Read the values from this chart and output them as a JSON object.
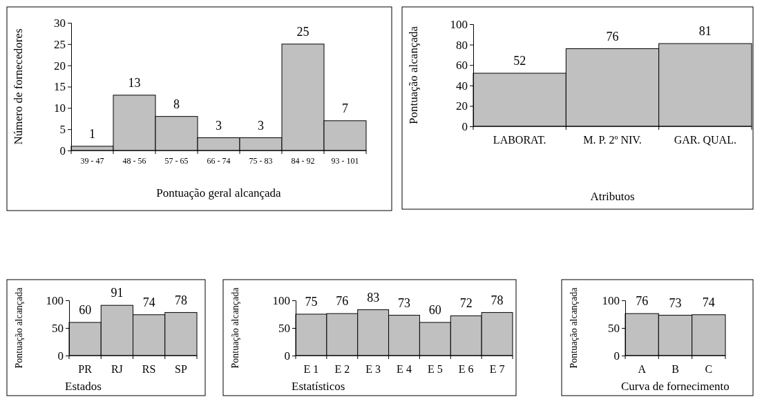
{
  "chart_data": [
    {
      "type": "bar",
      "categories": [
        "39 - 47",
        "48 - 56",
        "57 - 65",
        "66 - 74",
        "75 - 83",
        "84 - 92",
        "93 - 101"
      ],
      "values": [
        1,
        13,
        8,
        3,
        3,
        25,
        7
      ],
      "color": "#c0c0c0",
      "ylim": [
        0,
        30
      ],
      "yticks": [
        0,
        5,
        10,
        15,
        20,
        25,
        30
      ],
      "ylabel": "Número de fornecedores",
      "xlabel": "Pontuação geral alcançada",
      "data_labels": true,
      "grid": false
    },
    {
      "type": "bar",
      "categories": [
        "LABORAT.",
        "M. P. 2º NIV.",
        "GAR. QUAL."
      ],
      "values": [
        52,
        76,
        81
      ],
      "color": "#c0c0c0",
      "ylim": [
        0,
        100
      ],
      "yticks": [
        0,
        20,
        40,
        60,
        80,
        100
      ],
      "ylabel": "Pontuação alcançada",
      "xlabel": "Atributos",
      "data_labels": true,
      "grid": false
    },
    {
      "type": "bar",
      "categories": [
        "PR",
        "RJ",
        "RS",
        "SP"
      ],
      "values": [
        60,
        91,
        74,
        78
      ],
      "color": "#c0c0c0",
      "ylim": [
        0,
        100
      ],
      "yticks": [
        0,
        50,
        100
      ],
      "ylabel": "Pontuação alcançada",
      "xlabel": "Estados",
      "data_labels": true,
      "grid": false
    },
    {
      "type": "bar",
      "categories": [
        "E 1",
        "E 2",
        "E 3",
        "E 4",
        "E 5",
        "E 6",
        "E 7"
      ],
      "values": [
        75,
        76,
        83,
        73,
        60,
        72,
        78
      ],
      "color": "#c0c0c0",
      "ylim": [
        0,
        100
      ],
      "yticks": [
        0,
        50,
        100
      ],
      "ylabel": "Pontuação alcançada",
      "xlabel": "Estatísticos",
      "data_labels": true,
      "grid": false
    },
    {
      "type": "bar",
      "categories": [
        "A",
        "B",
        "C"
      ],
      "values": [
        76,
        73,
        74
      ],
      "color": "#c0c0c0",
      "ylim": [
        0,
        100
      ],
      "yticks": [
        0,
        50,
        100
      ],
      "ylabel": "Pontuação alcançada",
      "xlabel": "Curva de fornecimento",
      "data_labels": true,
      "grid": false
    }
  ]
}
